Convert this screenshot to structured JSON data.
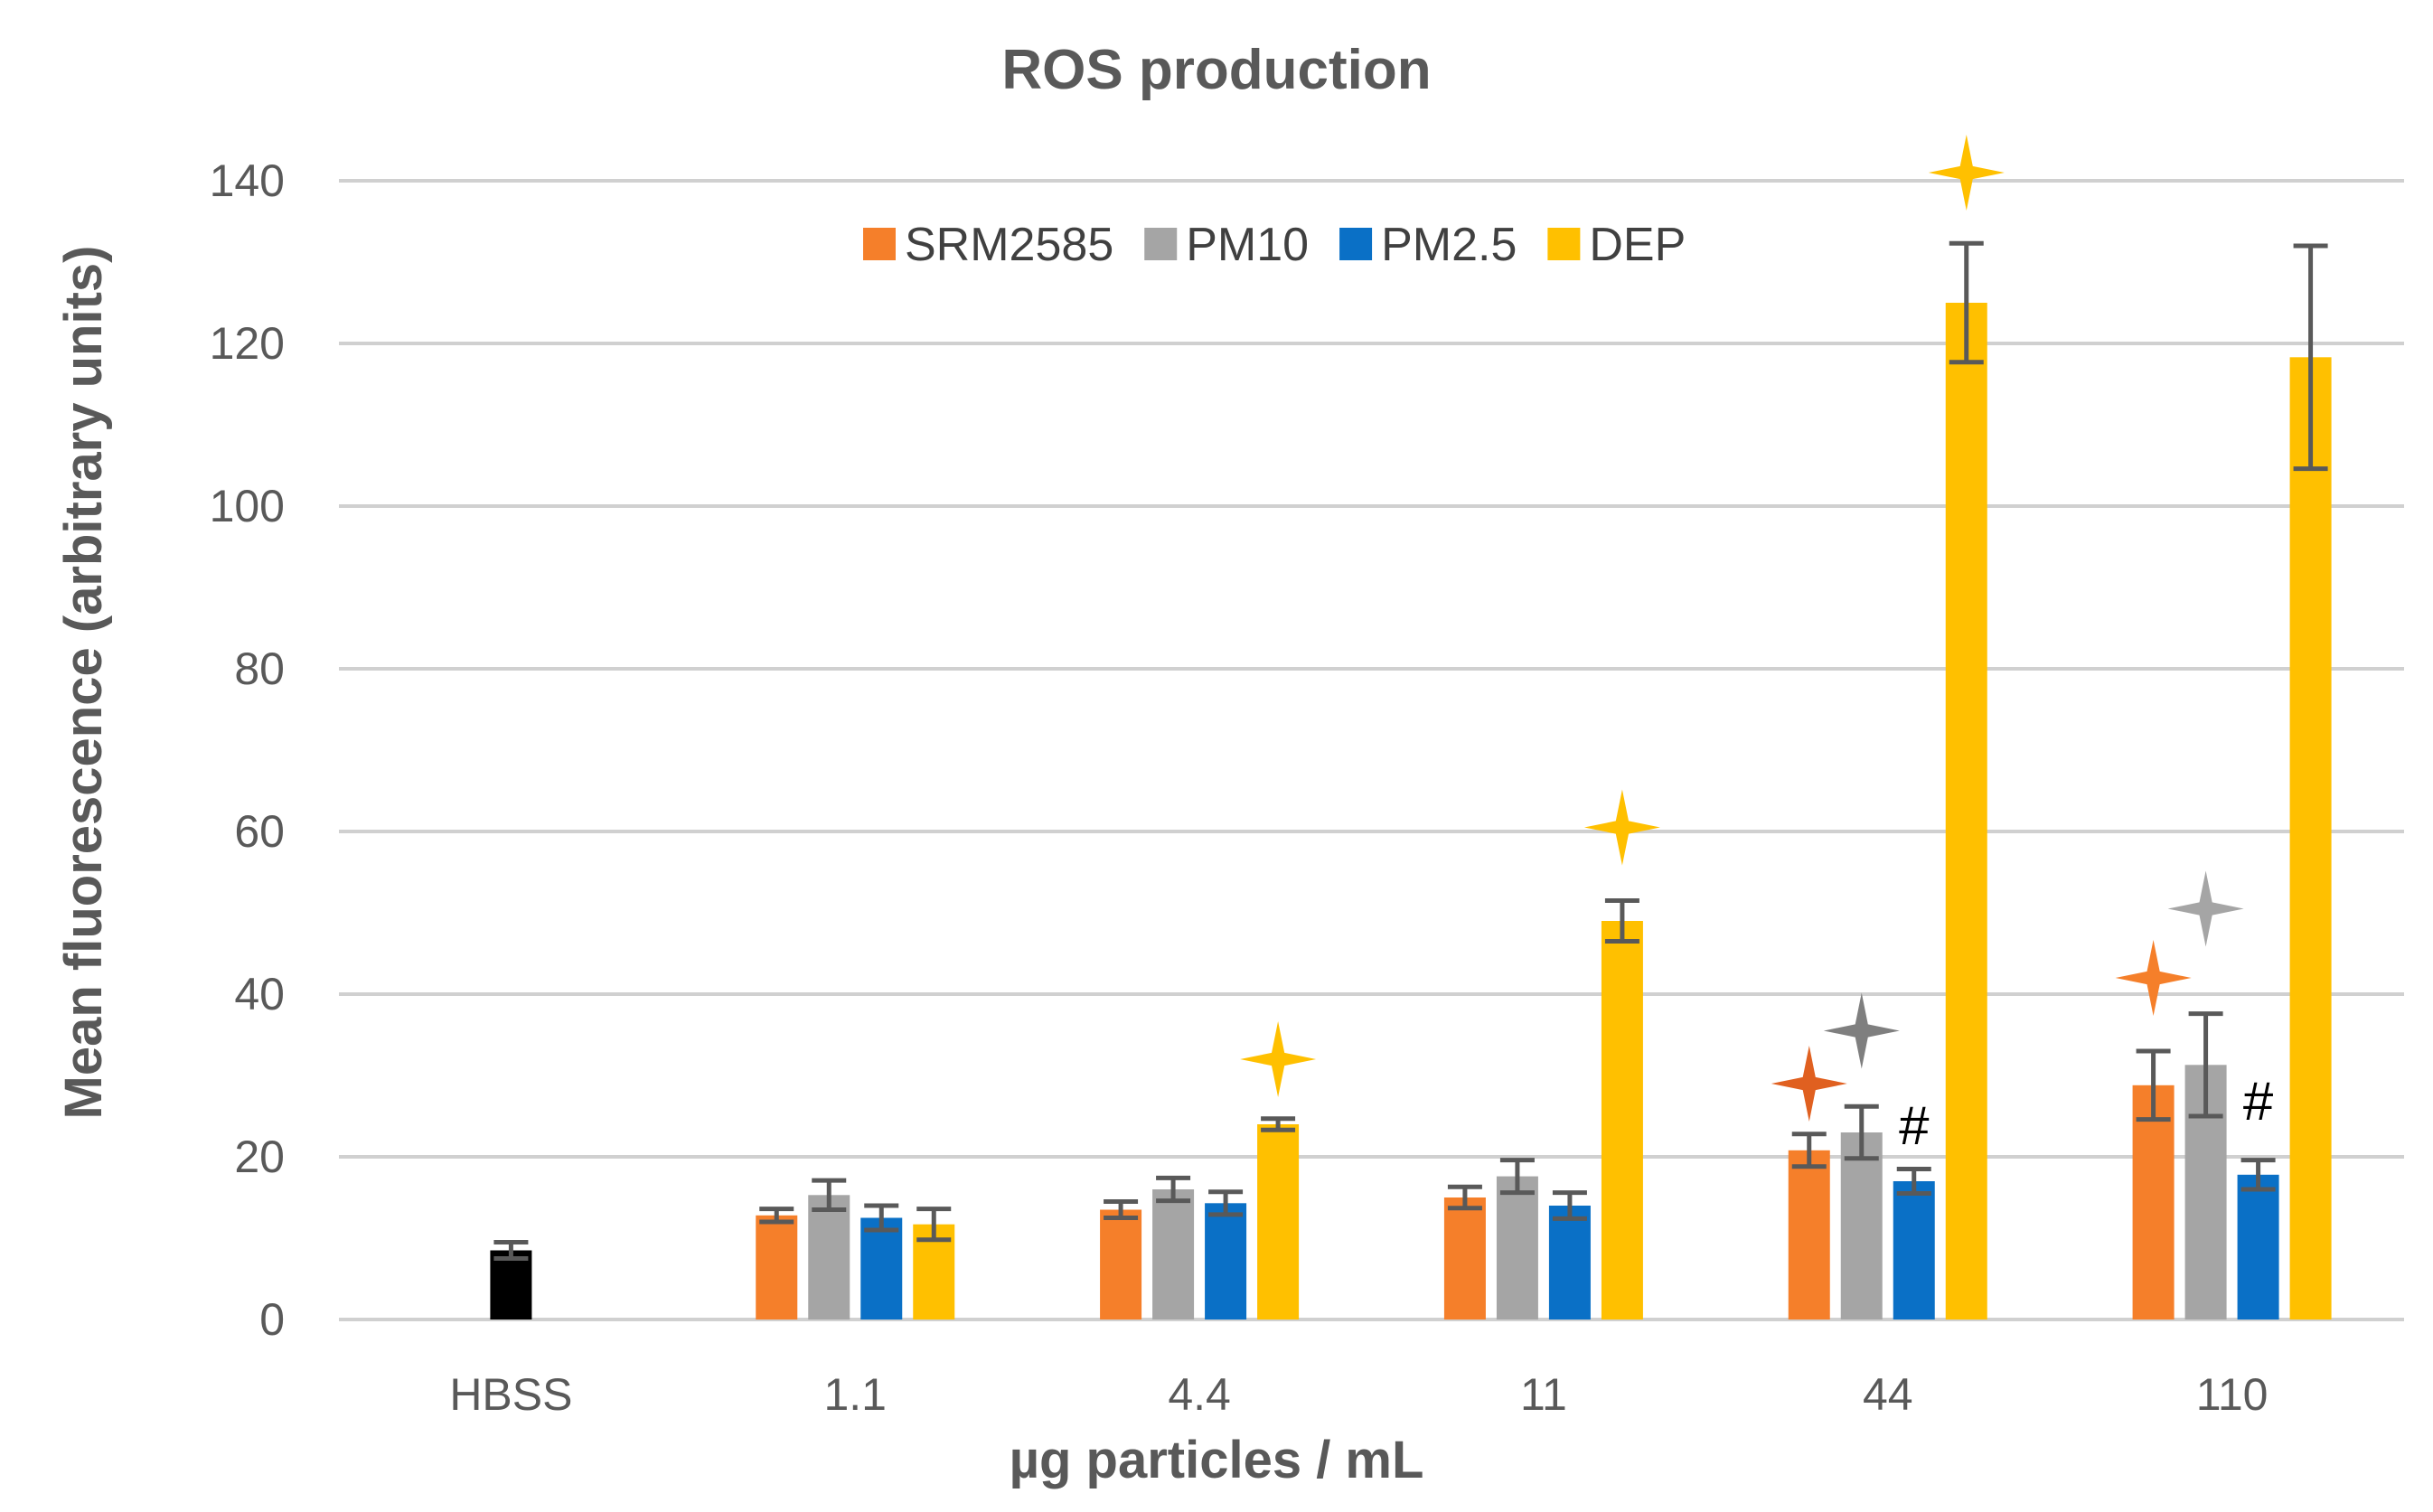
{
  "chart_data": {
    "type": "bar",
    "title": "ROS production",
    "xlabel": "µg particles / mL",
    "ylabel": "Mean fluorescence (arbitrary units)",
    "ylim": [
      0,
      140
    ],
    "yticks": [
      0,
      20,
      40,
      60,
      80,
      100,
      120,
      140
    ],
    "grid": true,
    "legend_position": "top-center",
    "control": {
      "category": "HBSS",
      "value": 8.5,
      "error": 1.0,
      "color": "#000000"
    },
    "categories": [
      "1.1",
      "4.4",
      "11",
      "44",
      "110"
    ],
    "all_categories": [
      "HBSS",
      "1.1",
      "4.4",
      "11",
      "44",
      "110"
    ],
    "series": [
      {
        "name": "SRM2585",
        "color": "#F57F2A",
        "values": [
          12.8,
          13.5,
          15.0,
          20.8,
          28.8
        ],
        "errors": [
          0.8,
          1.0,
          1.3,
          2.0,
          4.2
        ]
      },
      {
        "name": "PM10",
        "color": "#A5A5A5",
        "values": [
          15.3,
          16.0,
          17.6,
          23.0,
          31.3
        ],
        "errors": [
          1.8,
          1.4,
          2.0,
          3.2,
          6.3
        ]
      },
      {
        "name": "PM2.5",
        "color": "#0A70C6",
        "values": [
          12.5,
          14.3,
          14.0,
          17.0,
          17.8
        ],
        "errors": [
          1.5,
          1.4,
          1.6,
          1.5,
          1.8
        ]
      },
      {
        "name": "DEP",
        "color": "#FFC000",
        "values": [
          11.7,
          24.0,
          49.0,
          125.0,
          118.3
        ],
        "errors": [
          1.9,
          0.7,
          2.5,
          7.3,
          13.7
        ]
      }
    ],
    "annotations": [
      {
        "type": "star",
        "category": "4.4",
        "series": "DEP",
        "y": 32,
        "color": "#FFC000"
      },
      {
        "type": "star",
        "category": "11",
        "series": "DEP",
        "y": 60.5,
        "color": "#FFC000"
      },
      {
        "type": "star",
        "category": "44",
        "series": "DEP",
        "y": 141,
        "color": "#FFC000"
      },
      {
        "type": "star",
        "category": "44",
        "series": "SRM2585",
        "y": 29,
        "color": "#E06020"
      },
      {
        "type": "star",
        "category": "44",
        "series": "PM10",
        "y": 35.5,
        "color": "#7F7F7F"
      },
      {
        "type": "hash",
        "category": "44",
        "series": "PM2.5",
        "y": 24,
        "text": "#"
      },
      {
        "type": "star",
        "category": "110",
        "series": "SRM2585",
        "y": 42,
        "color": "#F57F2A"
      },
      {
        "type": "star",
        "category": "110",
        "series": "PM10",
        "y": 50.5,
        "color": "#A5A5A5"
      },
      {
        "type": "hash",
        "category": "110",
        "series": "PM2.5",
        "y": 27,
        "text": "#"
      }
    ]
  }
}
